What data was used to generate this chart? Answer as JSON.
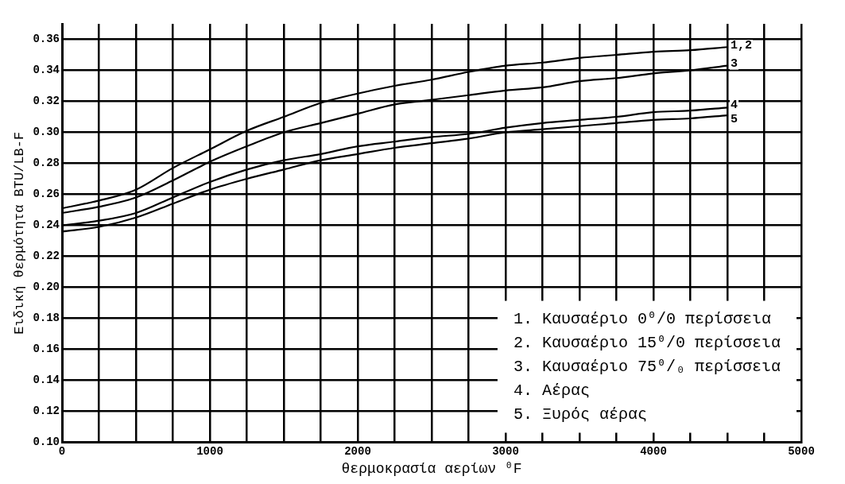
{
  "chart_data": {
    "type": "line",
    "xlabel": "θερμοκρασία αερίων ⁰F",
    "ylabel": "Ειδική θερμότητα BTU/LB-F",
    "x": [
      0,
      250,
      500,
      750,
      1000,
      1250,
      1500,
      1750,
      2000,
      2250,
      2500,
      2750,
      3000,
      3250,
      3500,
      3750,
      4000,
      4250,
      4500
    ],
    "series": [
      {
        "name": "1,2",
        "color": "#000000",
        "values": [
          0.251,
          0.256,
          0.263,
          0.277,
          0.289,
          0.301,
          0.31,
          0.319,
          0.325,
          0.33,
          0.334,
          0.339,
          0.343,
          0.345,
          0.348,
          0.35,
          0.352,
          0.353,
          0.355
        ]
      },
      {
        "name": "3",
        "color": "#000000",
        "values": [
          0.248,
          0.252,
          0.258,
          0.269,
          0.281,
          0.291,
          0.3,
          0.306,
          0.312,
          0.318,
          0.321,
          0.324,
          0.327,
          0.329,
          0.333,
          0.335,
          0.338,
          0.34,
          0.343
        ]
      },
      {
        "name": "4",
        "color": "#000000",
        "values": [
          0.24,
          0.243,
          0.248,
          0.258,
          0.268,
          0.276,
          0.282,
          0.286,
          0.291,
          0.294,
          0.297,
          0.299,
          0.303,
          0.306,
          0.308,
          0.31,
          0.313,
          0.314,
          0.316
        ]
      },
      {
        "name": "5",
        "color": "#000000",
        "values": [
          0.236,
          0.239,
          0.245,
          0.254,
          0.263,
          0.27,
          0.276,
          0.282,
          0.286,
          0.29,
          0.293,
          0.296,
          0.3,
          0.302,
          0.304,
          0.306,
          0.308,
          0.309,
          0.311
        ]
      }
    ],
    "xlim": [
      0,
      5000
    ],
    "xticks": [
      0,
      {
        "value": 250,
        "label": null
      },
      {
        "value": 500,
        "label": null
      },
      {
        "value": 750,
        "label": null
      },
      1000,
      {
        "value": 1250,
        "label": null
      },
      {
        "value": 1500,
        "label": null
      },
      {
        "value": 1750,
        "label": null
      },
      2000,
      {
        "value": 2250,
        "label": null
      },
      {
        "value": 2500,
        "label": null
      },
      {
        "value": 2750,
        "label": null
      },
      3000,
      {
        "value": 3250,
        "label": null
      },
      {
        "value": 3500,
        "label": null
      },
      {
        "value": 3750,
        "label": null
      },
      4000,
      {
        "value": 4250,
        "label": null
      },
      {
        "value": 4500,
        "label": null
      },
      {
        "value": 4750,
        "label": null
      },
      5000
    ],
    "ylim": [
      0.1,
      0.37
    ],
    "yticks": [
      {
        "value": 0.1,
        "label": "0.10"
      },
      {
        "value": 0.12,
        "label": "0.12"
      },
      {
        "value": 0.14,
        "label": "0.14"
      },
      {
        "value": 0.16,
        "label": "0.16"
      },
      {
        "value": 0.18,
        "label": "0.18"
      },
      {
        "value": 0.2,
        "label": "0.20"
      },
      {
        "value": 0.22,
        "label": "0.22"
      },
      {
        "value": 0.24,
        "label": "0.24"
      },
      {
        "value": 0.26,
        "label": "0.26"
      },
      {
        "value": 0.28,
        "label": "0.28"
      },
      {
        "value": 0.3,
        "label": "0.30"
      },
      {
        "value": 0.32,
        "label": "0.32"
      },
      {
        "value": 0.34,
        "label": "0.34"
      },
      {
        "value": 0.36,
        "label": "0.36"
      }
    ],
    "annotations": [
      "1. Καυσαέριο 0⁰/0 περίσσεια",
      "2. Καυσαέριο 15⁰/0 περίσσεια",
      "3. Καυσαέριο 75⁰/₀ περίσσεια",
      "4. Αέρας",
      "5. Ξυρός αέρας"
    ],
    "grid": true,
    "marker": "none",
    "line_style": "solid"
  }
}
